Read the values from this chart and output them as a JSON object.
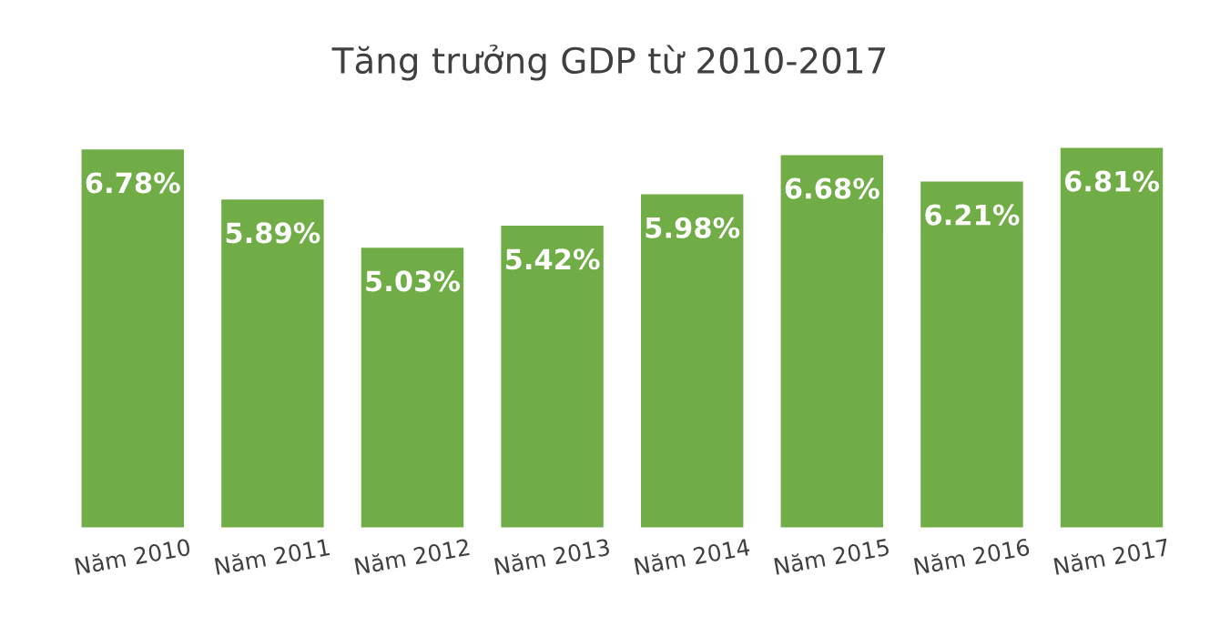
{
  "chart_data": {
    "type": "bar",
    "title": "Tăng trưởng GDP từ 2010-2017",
    "categories": [
      "Năm 2010",
      "Năm 2011",
      "Năm 2012",
      "Năm 2013",
      "Năm 2014",
      "Năm 2015",
      "Năm 2016",
      "Năm 2017"
    ],
    "values": [
      6.78,
      5.89,
      5.03,
      5.42,
      5.98,
      6.68,
      6.21,
      6.81
    ],
    "value_labels": [
      "6.78%",
      "5.89%",
      "5.03%",
      "5.42%",
      "5.98%",
      "6.68%",
      "6.21%",
      "6.81%"
    ],
    "color": "#70ad47",
    "tick_labels": "x",
    "grid": false,
    "legend": false
  }
}
